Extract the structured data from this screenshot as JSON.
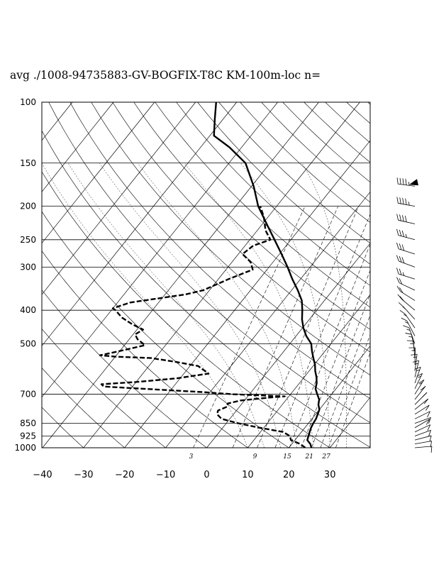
{
  "title": "avg ./1008-94735883-GV-BOGFIX-T8C KM-100m-loc n=",
  "chart_data": {
    "type": "skew-t",
    "pressure_levels": [
      100,
      150,
      200,
      250,
      300,
      400,
      500,
      700,
      850,
      925,
      1000
    ],
    "pressure_labels": [
      "100",
      "150",
      "200",
      "250",
      "300",
      "400",
      "500",
      "700",
      "850",
      "925",
      "1000"
    ],
    "temperature_ticks": [
      -40,
      -30,
      -20,
      -10,
      0,
      10,
      20,
      30
    ],
    "temperature_labels": [
      "−40",
      "−30",
      "−20",
      "−10",
      "0",
      "10",
      "20",
      "30"
    ],
    "mixing_ratio_labels": [
      "3",
      "9",
      "15",
      "21",
      "27"
    ],
    "xlim": [
      -40,
      40
    ],
    "ylim": [
      1000,
      100
    ],
    "y_scale": "log",
    "grid": true,
    "series": [
      {
        "style": "solid",
        "points": [
          [
            25.5,
            1000
          ],
          [
            24.5,
            975
          ],
          [
            23,
            950
          ],
          [
            22.5,
            925
          ],
          [
            22,
            900
          ],
          [
            21.5,
            875
          ],
          [
            21.2,
            850
          ],
          [
            21,
            825
          ],
          [
            20.5,
            800
          ],
          [
            20,
            775
          ],
          [
            18.8,
            750
          ],
          [
            18,
            725
          ],
          [
            16.5,
            700
          ],
          [
            15,
            675
          ],
          [
            14.2,
            650
          ],
          [
            13,
            625
          ],
          [
            11.5,
            600
          ],
          [
            10.2,
            575
          ],
          [
            8.5,
            550
          ],
          [
            6.8,
            525
          ],
          [
            5.2,
            500
          ],
          [
            2.5,
            475
          ],
          [
            0.2,
            450
          ],
          [
            -1.8,
            425
          ],
          [
            -3.5,
            400
          ],
          [
            -5.5,
            375
          ],
          [
            -8.5,
            350
          ],
          [
            -12,
            325
          ],
          [
            -15.5,
            300
          ],
          [
            -19.5,
            275
          ],
          [
            -24,
            250
          ],
          [
            -29,
            225
          ],
          [
            -34.5,
            200
          ],
          [
            -39.5,
            175
          ],
          [
            -46,
            150
          ],
          [
            -53,
            135
          ],
          [
            -59,
            125
          ],
          [
            -62,
            112
          ],
          [
            -65,
            100
          ]
        ]
      },
      {
        "style": "dashed",
        "points": [
          [
            24,
            1000
          ],
          [
            22,
            975
          ],
          [
            19,
            950
          ],
          [
            18,
            925
          ],
          [
            15.5,
            900
          ],
          [
            9,
            875
          ],
          [
            3,
            850
          ],
          [
            -2,
            825
          ],
          [
            -4,
            800
          ],
          [
            -4.5,
            780
          ],
          [
            -3,
            760
          ],
          [
            -3.5,
            745
          ],
          [
            -1,
            730
          ],
          [
            6,
            715
          ],
          [
            9,
            710
          ],
          [
            -4,
            700
          ],
          [
            -12,
            690
          ],
          [
            -22,
            680
          ],
          [
            -32,
            670
          ],
          [
            -37,
            665
          ],
          [
            -38,
            655
          ],
          [
            -30,
            645
          ],
          [
            -21,
            630
          ],
          [
            -14,
            610
          ],
          [
            -18,
            580
          ],
          [
            -24,
            565
          ],
          [
            -31,
            550
          ],
          [
            -40,
            545
          ],
          [
            -44,
            540
          ],
          [
            -40,
            525
          ],
          [
            -35,
            505
          ],
          [
            -38,
            485
          ],
          [
            -39.5,
            470
          ],
          [
            -38.5,
            455
          ],
          [
            -42,
            440
          ],
          [
            -46,
            420
          ],
          [
            -49,
            400
          ],
          [
            -50,
            395
          ],
          [
            -47,
            380
          ],
          [
            -35,
            360
          ],
          [
            -31.5,
            350
          ],
          [
            -27.5,
            325
          ],
          [
            -23.5,
            305
          ],
          [
            -25.5,
            290
          ],
          [
            -29,
            275
          ],
          [
            -28,
            260
          ],
          [
            -25,
            250
          ],
          [
            -28,
            235
          ],
          [
            -31,
            215
          ],
          [
            -34,
            200
          ]
        ]
      }
    ],
    "wind_profile": "wind barbs on the right side"
  }
}
